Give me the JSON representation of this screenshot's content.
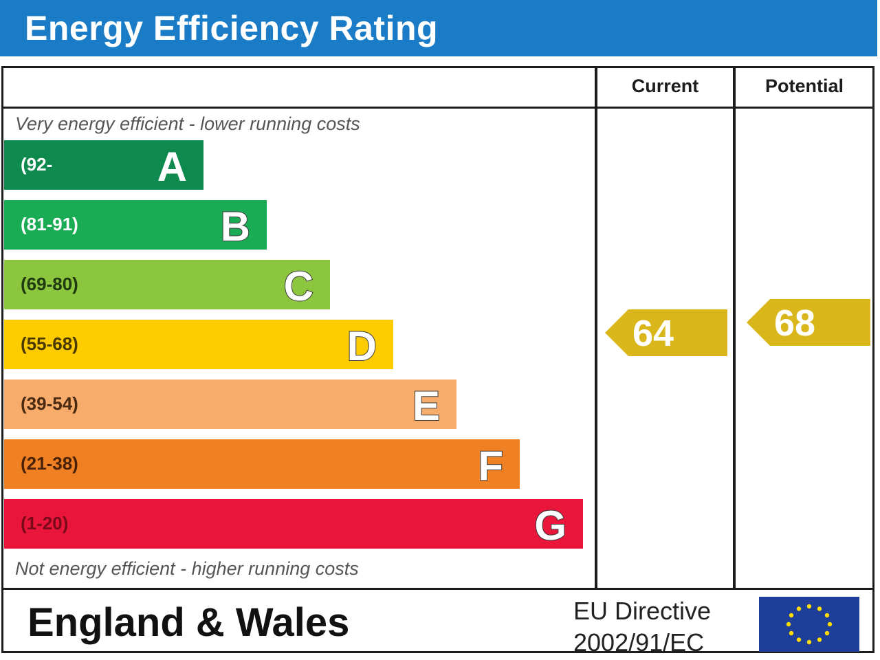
{
  "header": {
    "title": "Energy Efficiency Rating",
    "color": "#1a7cc6"
  },
  "columns": {
    "current": "Current",
    "potential": "Potential"
  },
  "notes": {
    "top": "Very energy efficient - lower running costs",
    "bottom": "Not energy efficient - higher running costs"
  },
  "chart_data": {
    "type": "bar",
    "categories": [
      "A",
      "B",
      "C",
      "D",
      "E",
      "F",
      "G"
    ],
    "bands": [
      {
        "letter": "A",
        "range": "(92-",
        "color": "#0e8a4f",
        "text_color": "#ffffff"
      },
      {
        "letter": "B",
        "range": "(81-91)",
        "color": "#1aac54",
        "text_color": "#ffffff"
      },
      {
        "letter": "C",
        "range": "(69-80)",
        "color": "#8cc63f",
        "text_color": "#1f3a10"
      },
      {
        "letter": "D",
        "range": "(55-68)",
        "color": "#ffcc00",
        "text_color": "#4a3a00"
      },
      {
        "letter": "E",
        "range": "(39-54)",
        "color": "#f7ac6b",
        "text_color": "#4a2a10"
      },
      {
        "letter": "F",
        "range": "(21-38)",
        "color": "#ef8023",
        "text_color": "#4a2208"
      },
      {
        "letter": "G",
        "range": "(1-20)",
        "color": "#e9153b",
        "text_color": "#7a0a1a"
      }
    ],
    "current": {
      "label": "Current",
      "value": 64,
      "band": "D"
    },
    "potential": {
      "label": "Potential",
      "value": 68,
      "band": "D"
    },
    "arrow_color": "#d9b71a"
  },
  "footer": {
    "title": "England & Wales",
    "directive_line1": "EU Directive",
    "directive_line2": "2002/91/EC",
    "flag": "eu-flag-icon"
  }
}
